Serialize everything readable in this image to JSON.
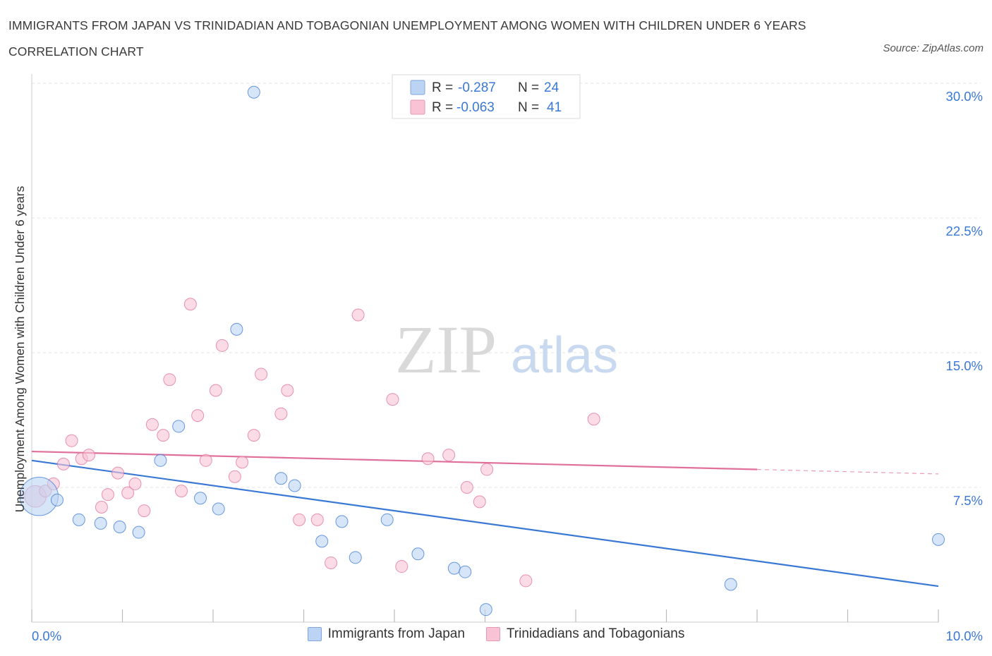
{
  "title": "IMMIGRANTS FROM JAPAN VS TRINIDADIAN AND TOBAGONIAN UNEMPLOYMENT AMONG WOMEN WITH CHILDREN UNDER 6 YEARS CORRELATION CHART",
  "source": "Source: ZipAtlas.com",
  "watermark": {
    "zip": "ZIP",
    "atlas": "atlas"
  },
  "legend_top": [
    {
      "r_label": "R =",
      "r_value": "-0.287",
      "n_label": "N =",
      "n_value": "24"
    },
    {
      "r_label": "R =",
      "r_value": "-0.063",
      "n_label": "N =",
      "n_value": "41"
    }
  ],
  "chart_data": {
    "type": "scatter",
    "ylabel": "Unemployment Among Women with Children Under 6 years",
    "xlim": [
      0,
      10
    ],
    "ylim": [
      0,
      30
    ],
    "x_tick_labels": [
      {
        "value": 0,
        "label": "0.0%"
      },
      {
        "value": 10,
        "label": "10.0%"
      }
    ],
    "y_tick_labels": [
      {
        "value": 7.5,
        "label": "7.5%"
      },
      {
        "value": 15,
        "label": "15.0%"
      },
      {
        "value": 22.5,
        "label": "22.5%"
      },
      {
        "value": 30,
        "label": "30.0%"
      }
    ],
    "grid": true,
    "legend_position": "top-center",
    "series": [
      {
        "name": "Immigrants from Japan",
        "color": "#3a78d6",
        "fill": "#bcd3f3",
        "trend": {
          "x0": 0,
          "y0": 9.0,
          "x1": 10,
          "y1": 2.0
        },
        "points": [
          [
            0.08,
            7.0,
            3.2
          ],
          [
            0.28,
            6.8,
            1
          ],
          [
            0.52,
            5.7,
            1
          ],
          [
            0.76,
            5.5,
            1
          ],
          [
            0.97,
            5.3,
            1
          ],
          [
            1.18,
            5.0,
            1
          ],
          [
            1.42,
            9.0,
            1
          ],
          [
            1.62,
            10.9,
            1
          ],
          [
            1.86,
            6.9,
            1
          ],
          [
            2.06,
            6.3,
            1
          ],
          [
            2.26,
            16.3,
            1
          ],
          [
            2.45,
            29.5,
            1
          ],
          [
            2.75,
            8.0,
            1
          ],
          [
            2.9,
            7.6,
            1
          ],
          [
            3.2,
            4.5,
            1
          ],
          [
            3.42,
            5.6,
            1
          ],
          [
            3.57,
            3.6,
            1
          ],
          [
            3.92,
            5.7,
            1
          ],
          [
            4.26,
            3.8,
            1
          ],
          [
            4.66,
            3.0,
            1
          ],
          [
            4.78,
            2.8,
            1
          ],
          [
            5.01,
            0.7,
            1
          ],
          [
            7.71,
            2.1,
            1
          ],
          [
            10.0,
            4.6,
            1
          ]
        ]
      },
      {
        "name": "Trinidadians and Tobagonians",
        "color": "#e0709a",
        "fill": "#f8c4d5",
        "trend": {
          "x0": 0,
          "y0": 9.5,
          "x1": 8.0,
          "y1": 8.5,
          "x_dash_end": 10,
          "y_dash_end": 8.25
        },
        "points": [
          [
            0.04,
            7.0,
            1.8
          ],
          [
            0.15,
            7.3,
            1
          ],
          [
            0.24,
            7.7,
            1
          ],
          [
            0.35,
            8.8,
            1
          ],
          [
            0.44,
            10.1,
            1
          ],
          [
            0.55,
            9.1,
            1
          ],
          [
            0.63,
            9.3,
            1
          ],
          [
            0.77,
            6.4,
            1
          ],
          [
            0.84,
            7.1,
            1
          ],
          [
            0.95,
            8.3,
            1
          ],
          [
            1.06,
            7.2,
            1
          ],
          [
            1.14,
            7.7,
            1
          ],
          [
            1.24,
            6.2,
            1
          ],
          [
            1.33,
            11.0,
            1
          ],
          [
            1.45,
            10.4,
            1
          ],
          [
            1.52,
            13.5,
            1
          ],
          [
            1.65,
            7.3,
            1
          ],
          [
            1.75,
            17.7,
            1
          ],
          [
            1.83,
            11.5,
            1
          ],
          [
            1.92,
            9.0,
            1
          ],
          [
            2.03,
            12.9,
            1
          ],
          [
            2.1,
            15.4,
            1
          ],
          [
            2.24,
            8.1,
            1
          ],
          [
            2.32,
            8.9,
            1
          ],
          [
            2.45,
            10.4,
            1
          ],
          [
            2.53,
            13.8,
            1
          ],
          [
            2.75,
            11.6,
            1
          ],
          [
            2.82,
            12.9,
            1
          ],
          [
            2.95,
            5.7,
            1
          ],
          [
            3.15,
            5.7,
            1
          ],
          [
            3.3,
            3.3,
            1
          ],
          [
            3.6,
            17.1,
            1
          ],
          [
            3.98,
            12.4,
            1
          ],
          [
            4.08,
            3.1,
            1
          ],
          [
            4.37,
            9.1,
            1
          ],
          [
            4.6,
            9.3,
            1
          ],
          [
            4.8,
            7.5,
            1
          ],
          [
            4.94,
            6.7,
            1
          ],
          [
            5.02,
            8.5,
            1
          ],
          [
            5.45,
            2.3,
            1
          ],
          [
            6.2,
            11.3,
            1
          ]
        ]
      }
    ]
  }
}
